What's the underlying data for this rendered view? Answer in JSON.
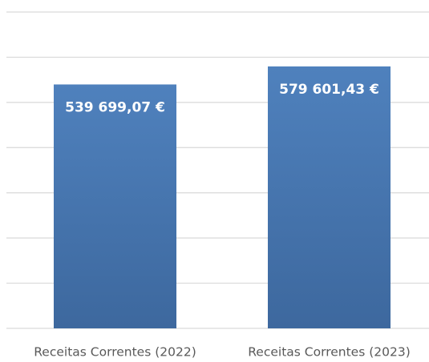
{
  "chart_data": {
    "type": "bar",
    "categories": [
      "Receitas Correntes (2022)",
      "Receitas Correntes (2023)"
    ],
    "values": [
      539699.07,
      579601.43
    ],
    "value_labels": [
      "539 699,07 €",
      "579 601,43 €"
    ],
    "color": "#4a78b5",
    "ylim": [
      0,
      700000
    ],
    "yticks": [
      0,
      100000,
      200000,
      300000,
      400000,
      500000,
      600000,
      700000
    ],
    "grid": true
  }
}
